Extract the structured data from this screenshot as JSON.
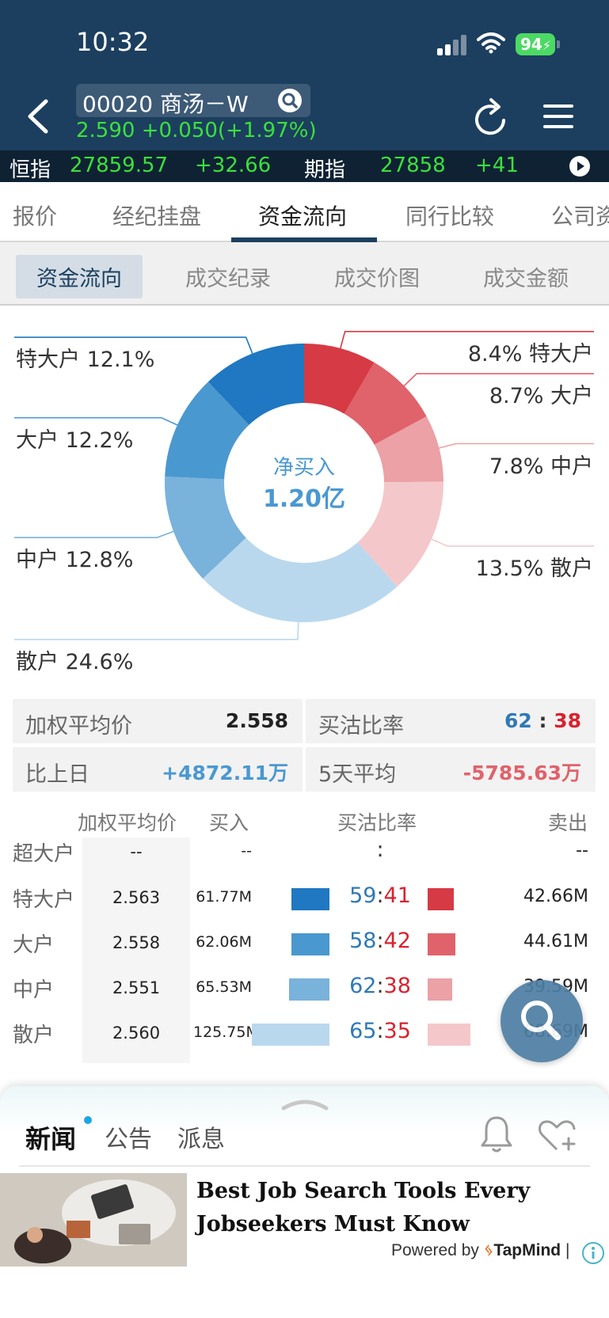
{
  "status_bar": {
    "time": "10:32",
    "battery": "94"
  },
  "header": {
    "stock_name": "00020 商汤－W",
    "price_line": "2.590 +0.050(+1.97%)"
  },
  "ticker": {
    "hsi_label": "恒指",
    "hsi_value": "27859.57",
    "hsi_change": "+32.66",
    "fut_label": "期指",
    "fut_value": "27858",
    "fut_change": "+41"
  },
  "tabs": [
    "报价",
    "经纪挂盘",
    "资金流向",
    "同行比较",
    "公司资"
  ],
  "active_tab": 2,
  "subtabs": [
    "资金流向",
    "成交纪录",
    "成交价图",
    "成交金额"
  ],
  "active_subtab": 0,
  "chart_data": {
    "type": "pie",
    "center_label": "净买入",
    "center_value": "1.20亿",
    "slices": [
      {
        "side": "sell",
        "name": "特大户",
        "pct": 8.4,
        "label": "8.4% 特大户",
        "color": "#d63a44"
      },
      {
        "side": "sell",
        "name": "大户",
        "pct": 8.7,
        "label": "8.7% 大户",
        "color": "#e0626a"
      },
      {
        "side": "sell",
        "name": "中户",
        "pct": 7.8,
        "label": "7.8% 中户",
        "color": "#eba1a5"
      },
      {
        "side": "sell",
        "name": "散户",
        "pct": 13.5,
        "label": "13.5% 散户",
        "color": "#f4c8cb"
      },
      {
        "side": "buy",
        "name": "散户",
        "pct": 24.6,
        "label": "散户 24.6%",
        "color": "#b9d8ee"
      },
      {
        "side": "buy",
        "name": "中户",
        "pct": 12.8,
        "label": "中户 12.8%",
        "color": "#79b2db"
      },
      {
        "side": "buy",
        "name": "大户",
        "pct": 12.2,
        "label": "大户 12.2%",
        "color": "#4a98d0"
      },
      {
        "side": "buy",
        "name": "特大户",
        "pct": 12.1,
        "label": "特大户 12.1%",
        "color": "#1f78c1"
      }
    ]
  },
  "summary": {
    "wap_label": "加权平均价",
    "wap_value": "2.558",
    "ratio_label": "买沽比率",
    "ratio_buy": "62",
    "ratio_sep": ":",
    "ratio_sell": "38",
    "prev_label": "比上日",
    "prev_value": "+4872.11万",
    "avg5_label": "5天平均",
    "avg5_value": "-5785.63万",
    "colors": {
      "buy": "#2f79b5",
      "sell": "#d9222f"
    }
  },
  "table": {
    "headers": {
      "wap": "加权平均价",
      "buy": "买入",
      "ratio": "买沽比率",
      "sell": "卖出"
    },
    "rows": [
      {
        "label": "超大户",
        "wap": "--",
        "buy": "--",
        "ratio_buy": "",
        "ratio_sep": ":",
        "ratio_sell": "",
        "sell": "--"
      },
      {
        "label": "特大户",
        "wap": "2.563",
        "buy": "61.77M",
        "ratio_buy": "59",
        "ratio_sep": ":",
        "ratio_sell": "41",
        "sell": "42.66M",
        "buy_color": "#1f78c1",
        "sell_color": "#d63a44"
      },
      {
        "label": "大户",
        "wap": "2.558",
        "buy": "62.06M",
        "ratio_buy": "58",
        "ratio_sep": ":",
        "ratio_sell": "42",
        "sell": "44.61M",
        "buy_color": "#4a98d0",
        "sell_color": "#e0626a"
      },
      {
        "label": "中户",
        "wap": "2.551",
        "buy": "65.53M",
        "ratio_buy": "62",
        "ratio_sep": ":",
        "ratio_sell": "38",
        "sell": "39.59M",
        "buy_color": "#79b2db",
        "sell_color": "#eba1a5"
      },
      {
        "label": "散户",
        "wap": "2.560",
        "buy": "125.75M",
        "ratio_buy": "65",
        "ratio_sep": ":",
        "ratio_sell": "35",
        "sell": "68.69M",
        "buy_color": "#b9d8ee",
        "sell_color": "#f4c8cb"
      }
    ]
  },
  "news": {
    "tabs": [
      "新闻",
      "公告",
      "派息"
    ],
    "active_tab": 0,
    "ad_title": "Best Job Search Tools Every Jobseekers Must Know",
    "powered_by": "Powered by",
    "brand": "TapMind",
    "separator": "|"
  },
  "icons": {
    "back": "chevron-left-icon",
    "search": "search-icon",
    "refresh": "refresh-icon",
    "menu": "hamburger-menu-icon",
    "play": "play-icon",
    "bell": "bell-icon",
    "favorite": "heart-plus-icon",
    "info": "info-icon"
  }
}
